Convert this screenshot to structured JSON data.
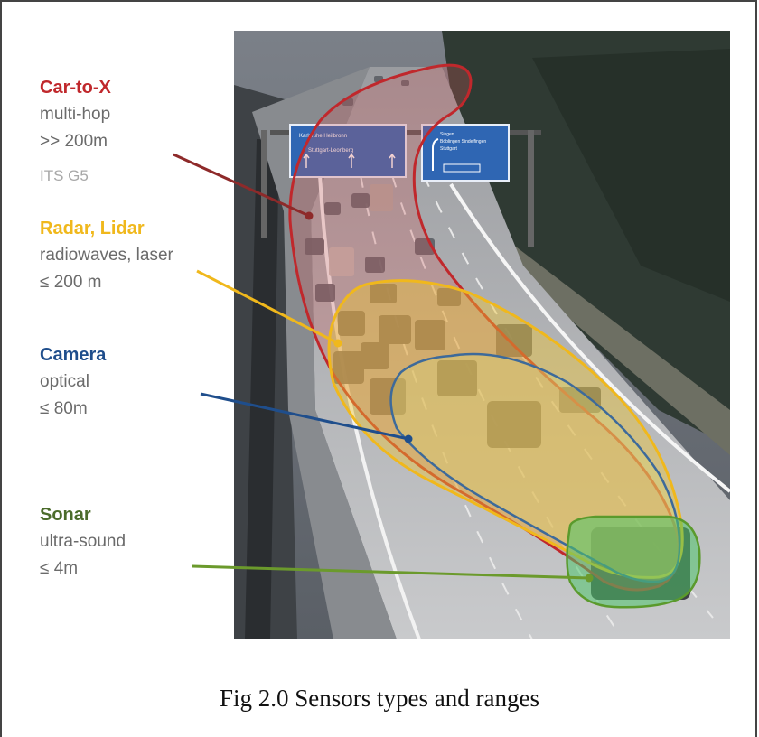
{
  "sensors": [
    {
      "id": "car2x",
      "title": "Car-to-X",
      "line1": "multi-hop",
      "line2": ">> 200m",
      "line3": "ITS G5",
      "color": "#c0282c"
    },
    {
      "id": "radar",
      "title": "Radar, Lidar",
      "line1": "radiowaves, laser",
      "line2": "≤ 200 m",
      "color": "#f0b81c"
    },
    {
      "id": "camera",
      "title": "Camera",
      "line1": "optical",
      "line2": "≤ 80m",
      "color": "#1f4e8c"
    },
    {
      "id": "sonar",
      "title": "Sonar",
      "line1": "ultra-sound",
      "line2": "≤ 4m",
      "color": "#4a6b2a"
    }
  ],
  "caption": "Fig 2.0 Sensors types and ranges"
}
